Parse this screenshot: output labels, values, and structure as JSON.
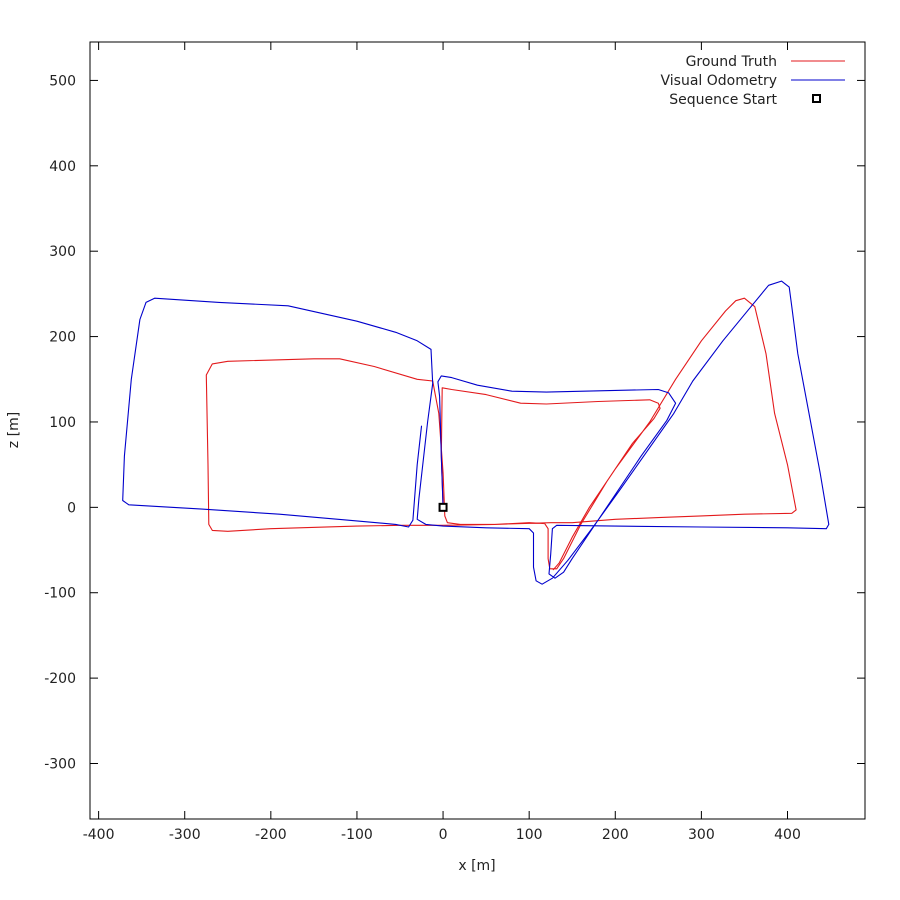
{
  "chart_data": {
    "type": "line",
    "xlabel": "x [m]",
    "ylabel": "z [m]",
    "xlim": [
      -410,
      490
    ],
    "ylim": [
      -365,
      545
    ],
    "x_ticks": [
      -400,
      -300,
      -200,
      -100,
      0,
      100,
      200,
      300,
      400
    ],
    "y_ticks": [
      -300,
      -200,
      -100,
      0,
      100,
      200,
      300,
      400,
      500
    ],
    "x_tick_labels": [
      "-400",
      "-300",
      "-200",
      "-100",
      "0",
      "100",
      "200",
      "300",
      "400"
    ],
    "y_tick_labels": [
      "-300",
      "-200",
      "-100",
      "0",
      "100",
      "200",
      "300",
      "400",
      "500"
    ],
    "grid": false,
    "legend_position": "top-right",
    "series": [
      {
        "name": "Ground Truth",
        "color": "#e31a1c",
        "points": [
          [
            0,
            0
          ],
          [
            -2,
            60
          ],
          [
            -1,
            140
          ],
          [
            10,
            138
          ],
          [
            50,
            132
          ],
          [
            90,
            122
          ],
          [
            120,
            121
          ],
          [
            180,
            124
          ],
          [
            240,
            126
          ],
          [
            250,
            122
          ],
          [
            252,
            116
          ],
          [
            245,
            104
          ],
          [
            220,
            75
          ],
          [
            190,
            30
          ],
          [
            160,
            -20
          ],
          [
            140,
            -60
          ],
          [
            132,
            -72
          ],
          [
            124,
            -72
          ],
          [
            122,
            -60
          ],
          [
            122,
            -25
          ],
          [
            118,
            -19
          ],
          [
            100,
            -18
          ],
          [
            60,
            -20
          ],
          [
            20,
            -20
          ],
          [
            5,
            -18
          ],
          [
            2,
            -10
          ],
          [
            0,
            40
          ],
          [
            -5,
            110
          ],
          [
            -12,
            148
          ],
          [
            -30,
            150
          ],
          [
            -80,
            165
          ],
          [
            -120,
            174
          ],
          [
            -150,
            174
          ],
          [
            -250,
            171
          ],
          [
            -268,
            168
          ],
          [
            -275,
            155
          ],
          [
            -273,
            50
          ],
          [
            -272,
            -20
          ],
          [
            -268,
            -27
          ],
          [
            -250,
            -28
          ],
          [
            -200,
            -25
          ],
          [
            -100,
            -22
          ],
          [
            -50,
            -21
          ],
          [
            0,
            -21
          ],
          [
            60,
            -20
          ],
          [
            125,
            -18
          ],
          [
            150,
            -18
          ],
          [
            200,
            -14
          ],
          [
            250,
            -12
          ],
          [
            300,
            -10
          ],
          [
            350,
            -8
          ],
          [
            405,
            -7
          ],
          [
            410,
            -3
          ],
          [
            400,
            50
          ],
          [
            385,
            110
          ],
          [
            375,
            180
          ],
          [
            362,
            235
          ],
          [
            350,
            245
          ],
          [
            340,
            242
          ],
          [
            328,
            230
          ],
          [
            300,
            195
          ],
          [
            270,
            150
          ],
          [
            240,
            100
          ],
          [
            200,
            45
          ],
          [
            170,
            0
          ],
          [
            150,
            -35
          ],
          [
            135,
            -65
          ],
          [
            128,
            -73
          ]
        ]
      },
      {
        "name": "Visual Odometry",
        "color": "#0000cc",
        "points": [
          [
            0,
            0
          ],
          [
            -2,
            60
          ],
          [
            -4,
            130
          ],
          [
            -6,
            147
          ],
          [
            -2,
            154
          ],
          [
            10,
            152
          ],
          [
            40,
            143
          ],
          [
            80,
            136
          ],
          [
            120,
            135
          ],
          [
            200,
            137
          ],
          [
            250,
            138
          ],
          [
            262,
            134
          ],
          [
            270,
            122
          ],
          [
            260,
            102
          ],
          [
            230,
            60
          ],
          [
            200,
            15
          ],
          [
            170,
            -30
          ],
          [
            150,
            -60
          ],
          [
            140,
            -76
          ],
          [
            130,
            -83
          ],
          [
            123,
            -78
          ],
          [
            125,
            -55
          ],
          [
            127,
            -25
          ],
          [
            132,
            -21
          ],
          [
            200,
            -22
          ],
          [
            300,
            -23
          ],
          [
            400,
            -24
          ],
          [
            445,
            -25
          ],
          [
            448,
            -20
          ],
          [
            438,
            40
          ],
          [
            425,
            110
          ],
          [
            412,
            180
          ],
          [
            405,
            235
          ],
          [
            402,
            258
          ],
          [
            393,
            265
          ],
          [
            378,
            260
          ],
          [
            355,
            232
          ],
          [
            325,
            195
          ],
          [
            290,
            148
          ],
          [
            268,
            110
          ],
          [
            240,
            70
          ],
          [
            205,
            20
          ],
          [
            175,
            -22
          ],
          [
            145,
            -62
          ],
          [
            127,
            -83
          ],
          [
            115,
            -90
          ],
          [
            108,
            -86
          ],
          [
            105,
            -70
          ],
          [
            105,
            -30
          ],
          [
            100,
            -25
          ],
          [
            50,
            -24
          ],
          [
            0,
            -22
          ],
          [
            -20,
            -20
          ],
          [
            -30,
            -14
          ],
          [
            -28,
            10
          ],
          [
            -18,
            100
          ],
          [
            -12,
            145
          ],
          [
            -14,
            185
          ],
          [
            -30,
            195
          ],
          [
            -55,
            205
          ],
          [
            -100,
            218
          ],
          [
            -180,
            236
          ],
          [
            -260,
            240
          ],
          [
            -335,
            245
          ],
          [
            -345,
            240
          ],
          [
            -352,
            220
          ],
          [
            -362,
            150
          ],
          [
            -370,
            60
          ],
          [
            -372,
            8
          ],
          [
            -365,
            3
          ],
          [
            -280,
            -2
          ],
          [
            -190,
            -8
          ],
          [
            -110,
            -15
          ],
          [
            -55,
            -20
          ],
          [
            -40,
            -23
          ],
          [
            -35,
            -15
          ],
          [
            -30,
            50
          ],
          [
            -25,
            95
          ]
        ]
      }
    ],
    "markers": [
      {
        "name": "Sequence Start",
        "x": 0,
        "y": 0,
        "shape": "square",
        "color": "#000000"
      }
    ]
  }
}
